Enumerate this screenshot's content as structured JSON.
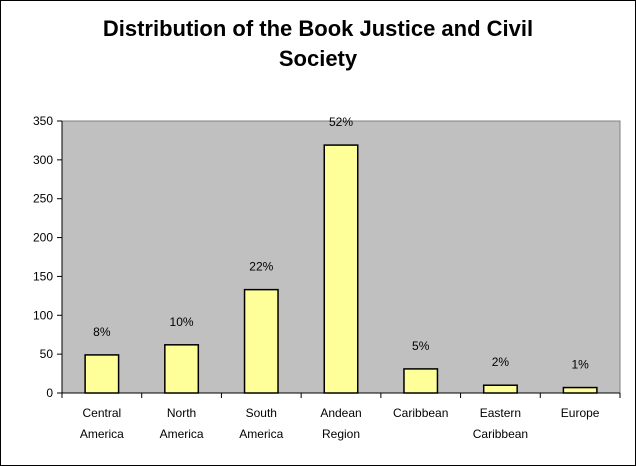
{
  "chart_data": {
    "type": "bar",
    "title_lines": [
      "Distribution of the Book Justice and Civil",
      "Society"
    ],
    "categories": [
      [
        "Central",
        "America"
      ],
      [
        "North",
        "America"
      ],
      [
        "South",
        "America"
      ],
      [
        "Andean",
        "Region"
      ],
      [
        "Caribbean"
      ],
      [
        "Eastern",
        "Caribbean"
      ],
      [
        "Europe"
      ]
    ],
    "values": [
      49,
      62,
      133,
      319,
      31,
      10,
      7
    ],
    "data_labels": [
      "8%",
      "10%",
      "22%",
      "52%",
      "5%",
      "2%",
      "1%"
    ],
    "yticks": [
      "0",
      "50",
      "100",
      "150",
      "200",
      "250",
      "300",
      "350"
    ],
    "ylim": [
      0,
      350
    ],
    "xlabel": "",
    "ylabel": "",
    "grid": false,
    "legend": "none",
    "colors": {
      "plot_bg": "#c0c0c0",
      "bar_fill": "#ffff99",
      "bar_stroke": "#000000"
    }
  }
}
